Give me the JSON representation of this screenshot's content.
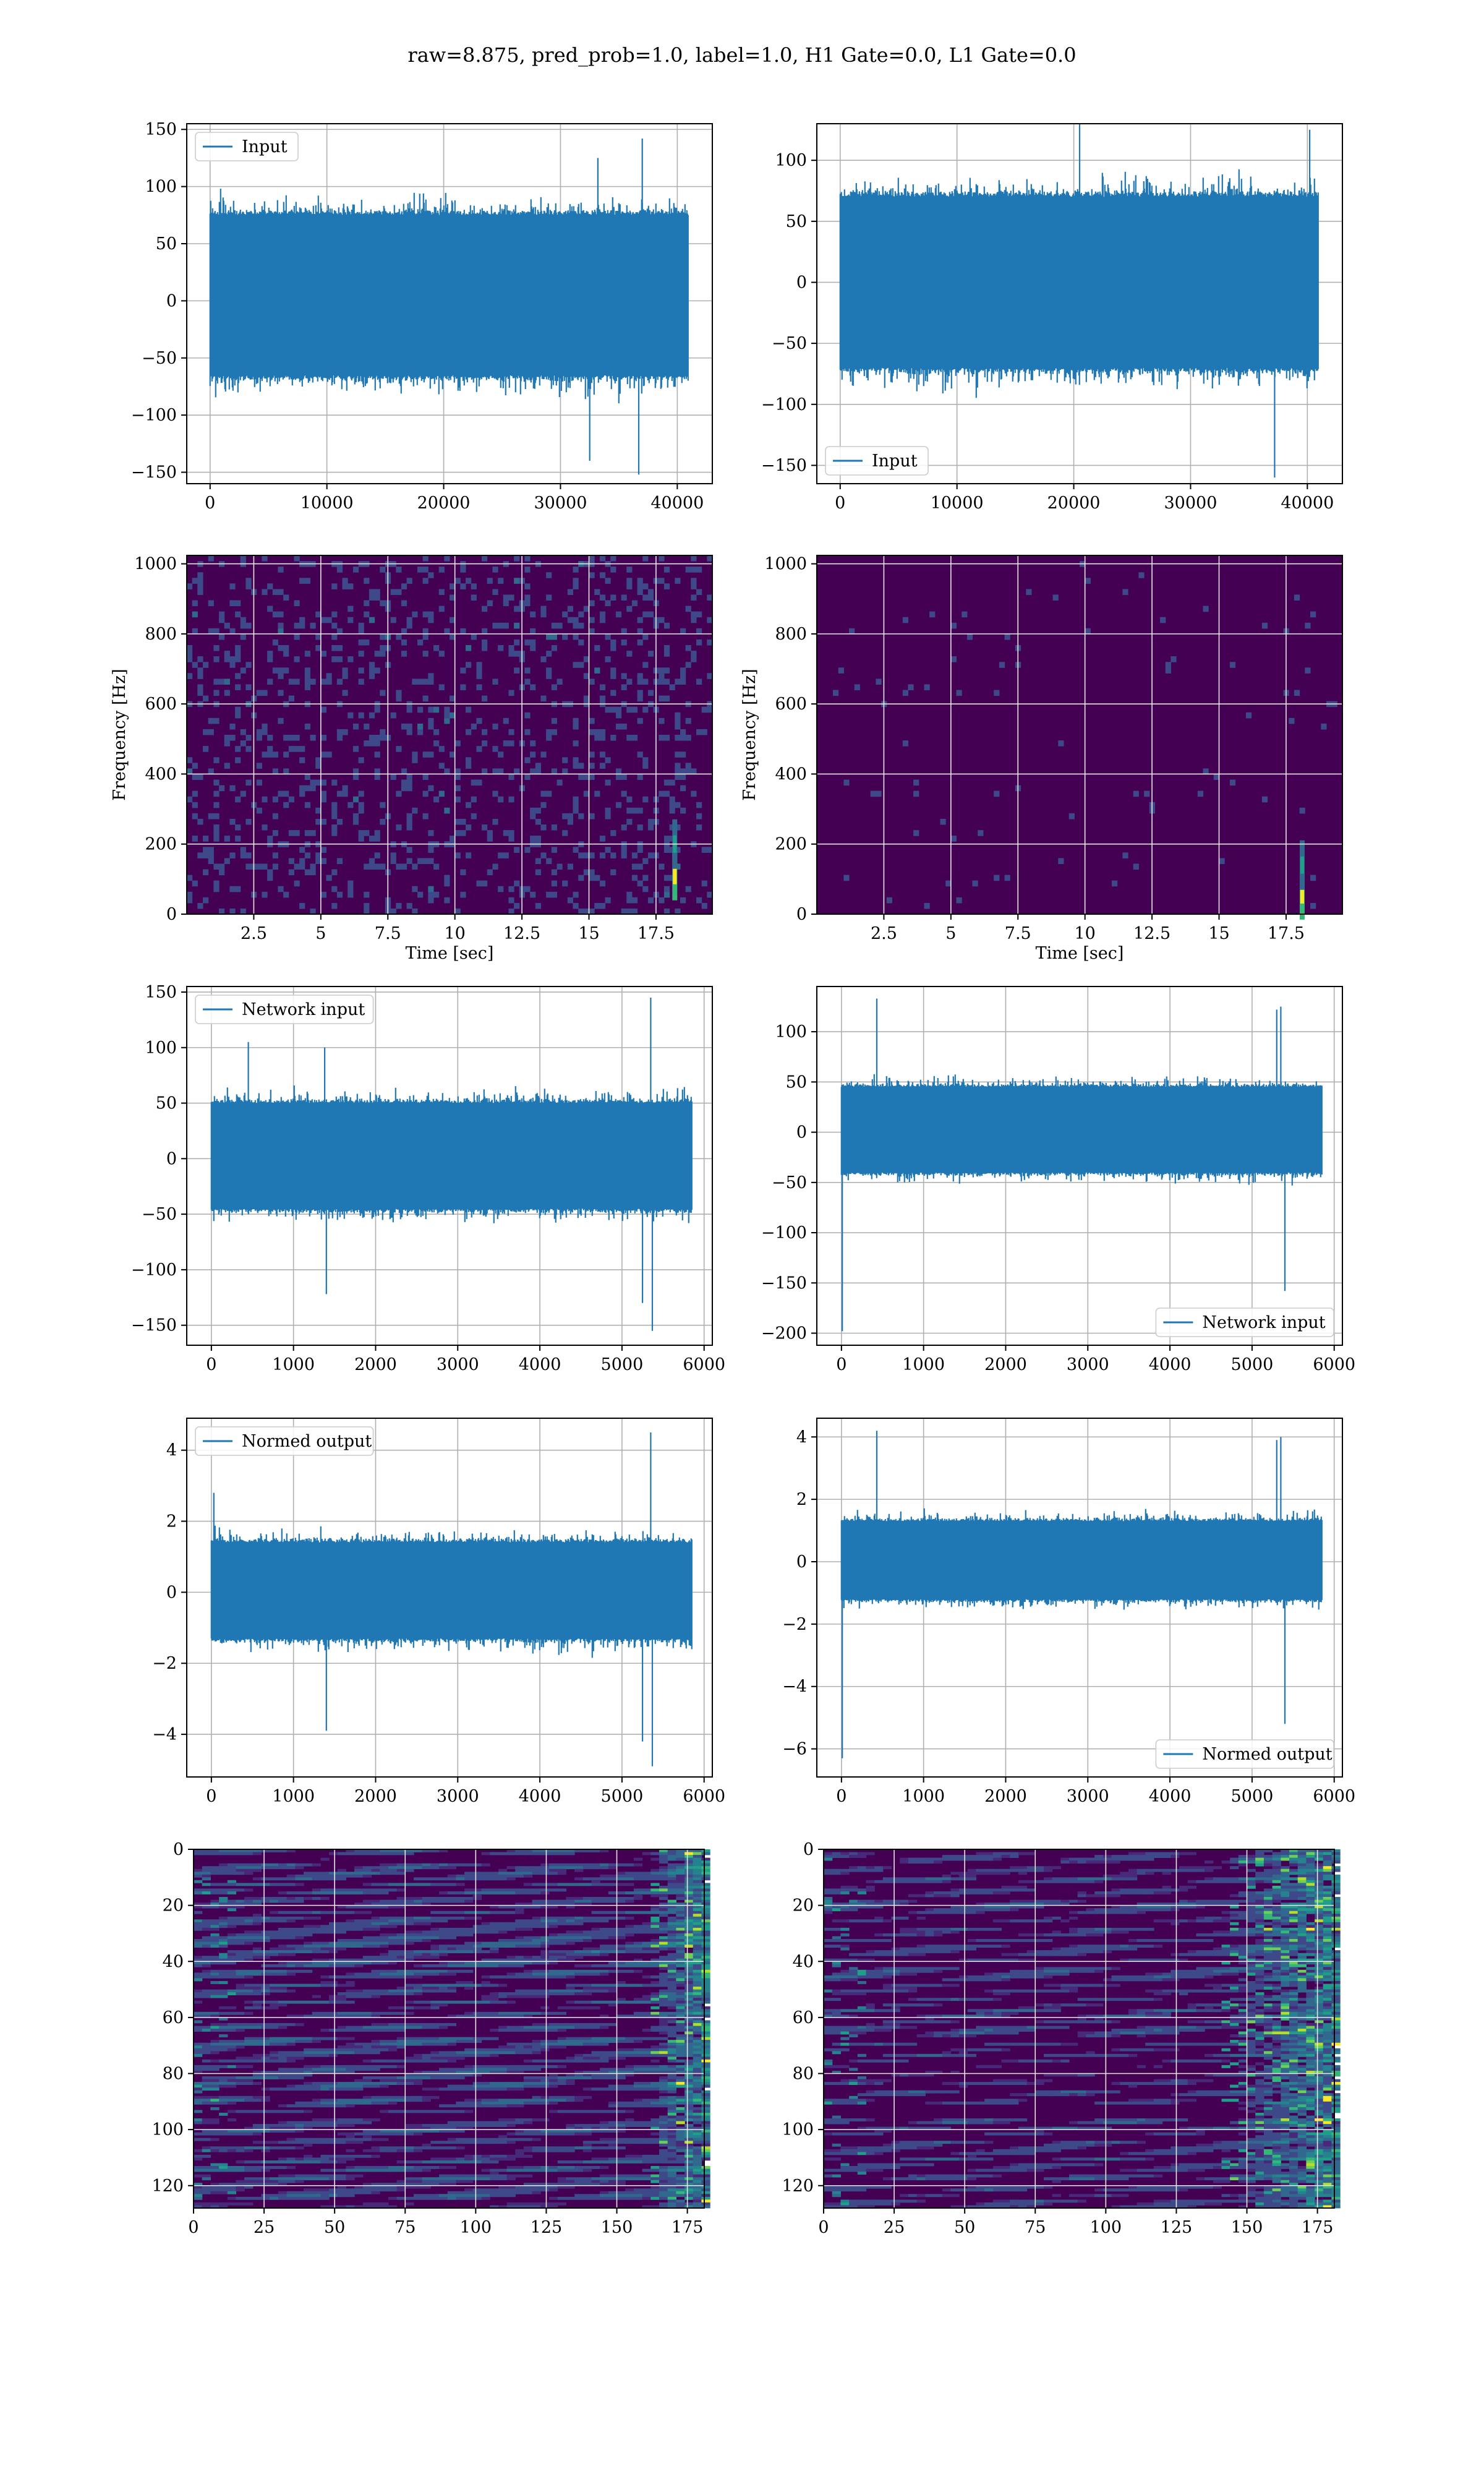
{
  "suptitle": "raw=8.875, pred_prob=1.0, label=1.0, H1 Gate=0.0, L1 Gate=0.0",
  "colors": {
    "line": "#1f77b4",
    "grid": "#b0b0b0",
    "viridis": [
      "#440154",
      "#482878",
      "#3e4989",
      "#31688e",
      "#26828e",
      "#1f9e89",
      "#35b779",
      "#6ece58",
      "#b5de2b",
      "#fde725"
    ]
  },
  "chart_data": [
    {
      "id": "h1-input",
      "type": "line",
      "series": [
        {
          "name": "Input"
        }
      ],
      "legend_loc": "upper-left",
      "xlim": [
        -2000,
        43000
      ],
      "ylim": [
        -160,
        155
      ],
      "xticks": [
        0,
        10000,
        20000,
        30000,
        40000
      ],
      "yticks": [
        -150,
        -100,
        -50,
        0,
        50,
        100,
        150
      ],
      "n_samples": 40960,
      "band": [
        -65,
        75
      ],
      "peak_amp": 95,
      "spikes": [
        {
          "x": 36700,
          "y": -152
        },
        {
          "x": 37000,
          "y": 142
        },
        {
          "x": 32500,
          "y": -140
        },
        {
          "x": 33200,
          "y": 125
        }
      ],
      "grid": true
    },
    {
      "id": "l1-input",
      "type": "line",
      "series": [
        {
          "name": "Input"
        }
      ],
      "legend_loc": "lower-left",
      "xlim": [
        -2000,
        43000
      ],
      "ylim": [
        -165,
        130
      ],
      "xticks": [
        0,
        10000,
        20000,
        30000,
        40000
      ],
      "yticks": [
        -150,
        -100,
        -50,
        0,
        50,
        100
      ],
      "n_samples": 40960,
      "band": [
        -70,
        70
      ],
      "peak_amp": 95,
      "spikes": [
        {
          "x": 37200,
          "y": -160
        },
        {
          "x": 20500,
          "y": 130
        },
        {
          "x": 40200,
          "y": 125
        }
      ],
      "grid": true
    },
    {
      "id": "h1-spectrogram",
      "type": "heatmap",
      "xlabel": "Time [sec]",
      "ylabel": "Frequency [Hz]",
      "xlim": [
        0,
        19.6
      ],
      "ylim": [
        0,
        1024
      ],
      "xticks": [
        2.5,
        5.0,
        7.5,
        10.0,
        12.5,
        15.0,
        17.5
      ],
      "yticks": [
        0,
        200,
        400,
        600,
        800,
        1000
      ],
      "base_level": 0.12,
      "noise_level": 0.25,
      "hotspots": [
        {
          "t": 18.2,
          "f": 110,
          "v": 1.0
        },
        {
          "t": 18.2,
          "f": 200,
          "v": 0.55
        }
      ],
      "grid": true
    },
    {
      "id": "l1-spectrogram",
      "type": "heatmap",
      "xlabel": "Time [sec]",
      "ylabel": "Frequency [Hz]",
      "xlim": [
        0,
        19.6
      ],
      "ylim": [
        0,
        1024
      ],
      "xticks": [
        2.5,
        5.0,
        7.5,
        10.0,
        12.5,
        15.0,
        17.5
      ],
      "yticks": [
        0,
        200,
        400,
        600,
        800,
        1000
      ],
      "base_level": 0.1,
      "noise_level": 0.18,
      "hotspots": [
        {
          "t": 18.1,
          "f": 55,
          "v": 1.0
        },
        {
          "t": 18.1,
          "f": 140,
          "v": 0.5
        }
      ],
      "grid": true
    },
    {
      "id": "h1-network-input",
      "type": "line",
      "series": [
        {
          "name": "Network input"
        }
      ],
      "legend_loc": "upper-left",
      "xlim": [
        -300,
        6100
      ],
      "ylim": [
        -168,
        155
      ],
      "xticks": [
        0,
        1000,
        2000,
        3000,
        4000,
        5000,
        6000
      ],
      "yticks": [
        -150,
        -100,
        -50,
        0,
        50,
        100,
        150
      ],
      "n_samples": 5856,
      "band": [
        -45,
        50
      ],
      "peak_amp": 70,
      "spikes": [
        {
          "x": 5350,
          "y": 145
        },
        {
          "x": 5370,
          "y": -155
        },
        {
          "x": 5250,
          "y": -130
        },
        {
          "x": 1400,
          "y": -122
        },
        {
          "x": 450,
          "y": 105
        },
        {
          "x": 1380,
          "y": 100
        }
      ],
      "grid": true
    },
    {
      "id": "l1-network-input",
      "type": "line",
      "series": [
        {
          "name": "Network input"
        }
      ],
      "legend_loc": "lower-right",
      "xlim": [
        -300,
        6100
      ],
      "ylim": [
        -212,
        145
      ],
      "xticks": [
        0,
        1000,
        2000,
        3000,
        4000,
        5000,
        6000
      ],
      "yticks": [
        -200,
        -150,
        -100,
        -50,
        0,
        50,
        100
      ],
      "n_samples": 5856,
      "band": [
        -40,
        45
      ],
      "peak_amp": 60,
      "spikes": [
        {
          "x": 10,
          "y": -198
        },
        {
          "x": 430,
          "y": 133
        },
        {
          "x": 5350,
          "y": 125
        },
        {
          "x": 5400,
          "y": -158
        },
        {
          "x": 5300,
          "y": 122
        }
      ],
      "grid": true
    },
    {
      "id": "h1-normed-output",
      "type": "line",
      "series": [
        {
          "name": "Normed output"
        }
      ],
      "legend_loc": "upper-left",
      "xlim": [
        -300,
        6100
      ],
      "ylim": [
        -5.2,
        4.9
      ],
      "xticks": [
        0,
        1000,
        2000,
        3000,
        4000,
        5000,
        6000
      ],
      "yticks": [
        -4,
        -2,
        0,
        2,
        4
      ],
      "n_samples": 5856,
      "band": [
        -1.3,
        1.4
      ],
      "peak_amp": 2.1,
      "spikes": [
        {
          "x": 5350,
          "y": 4.5
        },
        {
          "x": 5370,
          "y": -4.9
        },
        {
          "x": 5250,
          "y": -4.2
        },
        {
          "x": 1400,
          "y": -3.9
        },
        {
          "x": 30,
          "y": 2.8
        }
      ],
      "grid": true
    },
    {
      "id": "l1-normed-output",
      "type": "line",
      "series": [
        {
          "name": "Normed output"
        }
      ],
      "legend_loc": "lower-right",
      "xlim": [
        -300,
        6100
      ],
      "ylim": [
        -6.9,
        4.6
      ],
      "xticks": [
        0,
        1000,
        2000,
        3000,
        4000,
        5000,
        6000
      ],
      "yticks": [
        -6,
        -4,
        -2,
        0,
        2,
        4
      ],
      "n_samples": 5856,
      "band": [
        -1.2,
        1.3
      ],
      "peak_amp": 1.8,
      "spikes": [
        {
          "x": 10,
          "y": -6.3
        },
        {
          "x": 430,
          "y": 4.2
        },
        {
          "x": 5350,
          "y": 4.0
        },
        {
          "x": 5400,
          "y": -5.2
        },
        {
          "x": 5300,
          "y": 3.9
        }
      ],
      "grid": true
    },
    {
      "id": "h1-feature-map",
      "type": "heatmap",
      "xlim": [
        0,
        181
      ],
      "ylim": [
        128,
        0
      ],
      "xticks": [
        0,
        25,
        50,
        75,
        100,
        125,
        150,
        175
      ],
      "yticks": [
        0,
        20,
        40,
        60,
        80,
        100,
        120
      ],
      "base_level": 0.08,
      "noise_level": 0.3,
      "active_from": 160,
      "grid": true
    },
    {
      "id": "l1-feature-map",
      "type": "heatmap",
      "xlim": [
        0,
        181
      ],
      "ylim": [
        128,
        0
      ],
      "xticks": [
        0,
        25,
        50,
        75,
        100,
        125,
        150,
        175
      ],
      "yticks": [
        0,
        20,
        40,
        60,
        80,
        100,
        120
      ],
      "base_level": 0.06,
      "noise_level": 0.25,
      "active_from": 140,
      "grid": true
    }
  ]
}
